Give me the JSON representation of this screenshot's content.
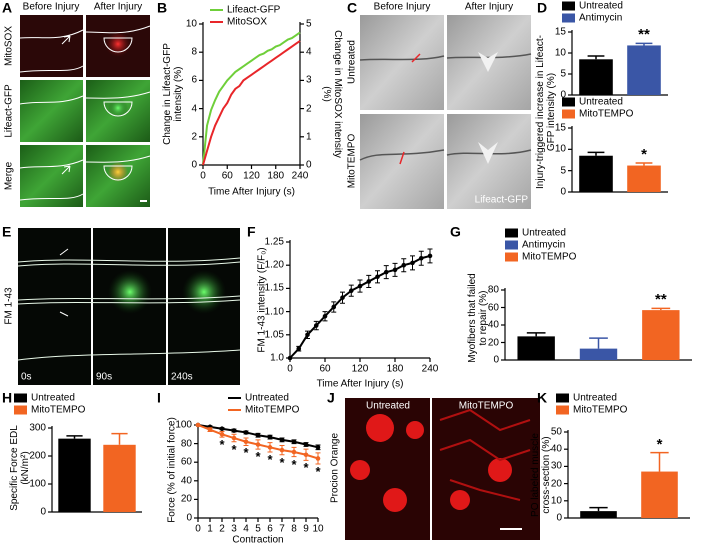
{
  "panel_labels": [
    "A",
    "B",
    "C",
    "D",
    "E",
    "F",
    "G",
    "H",
    "I",
    "J",
    "K"
  ],
  "images": {
    "A": {
      "columns": [
        "Before Injury",
        "After Injury"
      ],
      "rows": [
        "MitoSOX",
        "Lifeact-GFP",
        "Merge"
      ]
    },
    "C": {
      "columns": [
        "Before Injury",
        "After Injury"
      ],
      "rows": [
        "Untreated",
        "MitoTEMPO"
      ],
      "stain": "Lifeact-GFP"
    },
    "E": {
      "stain": "FM 1-43",
      "times": [
        "0s",
        "90s",
        "240s"
      ]
    },
    "J": {
      "columns": [
        "Untreated",
        "MitoTEMPO"
      ],
      "stain": "Procion Orange"
    }
  },
  "chart_data": [
    {
      "type": "line",
      "x": [
        0,
        10,
        20,
        30,
        40,
        50,
        60,
        70,
        80,
        90,
        100,
        110,
        120,
        130,
        140,
        150,
        160,
        170,
        180,
        190,
        200,
        210,
        220,
        230,
        240
      ],
      "xlim": [
        0,
        240
      ],
      "xticks": [
        0,
        60,
        120,
        180,
        240
      ],
      "xlabel": "Time After Injury (s)",
      "ylim": [
        0,
        10
      ],
      "yticks": [
        0,
        2,
        4,
        6,
        8,
        10
      ],
      "ylabel": "Change in Lifeact-GFP intensity (%)",
      "y2lim": [
        0,
        5
      ],
      "y2ticks": [
        0,
        1,
        2,
        3,
        4,
        5
      ],
      "y2label": "Change in MitoSOX intensity (%)",
      "series": [
        {
          "name": "Lifeact-GFP",
          "color": "#6fcf3a",
          "values": [
            0,
            2.8,
            3.9,
            4.6,
            5.2,
            5.6,
            6.0,
            6.3,
            6.6,
            6.8,
            7.0,
            7.2,
            7.4,
            7.6,
            7.8,
            7.9,
            8.1,
            8.2,
            8.4,
            8.5,
            8.7,
            8.9,
            9.0,
            9.2,
            9.4
          ]
        },
        {
          "name": "MitoSOX",
          "color": "#e8262a",
          "axis": "y2",
          "values": [
            0,
            0.5,
            1.0,
            1.4,
            1.7,
            2.0,
            2.2,
            2.5,
            2.7,
            2.8,
            3.0,
            3.1,
            3.2,
            3.3,
            3.4,
            3.5,
            3.6,
            3.7,
            3.8,
            3.9,
            4.0,
            4.1,
            4.2,
            4.3,
            4.4
          ]
        }
      ]
    },
    {
      "type": "bar",
      "categories": [
        "Untreated",
        "Antimycin"
      ],
      "colors": [
        "#000000",
        "#3a56a6"
      ],
      "values": [
        8.5,
        11.8
      ],
      "errors": [
        0.8,
        0.5
      ],
      "significance": [
        null,
        "**"
      ],
      "ylim": [
        0,
        15
      ],
      "yticks": [
        0,
        5,
        10,
        15
      ],
      "ylabel": "Injury-triggered increase in Lifeact-GFP intensity (%)"
    },
    {
      "type": "bar",
      "categories": [
        "Untreated",
        "MitoTEMPO"
      ],
      "colors": [
        "#000000",
        "#f26522"
      ],
      "values": [
        8.5,
        6.2
      ],
      "errors": [
        0.8,
        0.6
      ],
      "significance": [
        null,
        "*"
      ],
      "ylim": [
        0,
        15
      ],
      "yticks": [
        0,
        5,
        10,
        15
      ]
    },
    {
      "type": "line",
      "markers": true,
      "x": [
        0,
        15,
        30,
        45,
        60,
        75,
        90,
        105,
        120,
        135,
        150,
        165,
        180,
        195,
        210,
        225,
        240
      ],
      "xlim": [
        0,
        240
      ],
      "xticks": [
        0,
        60,
        120,
        180,
        240
      ],
      "xlabel": "Time After Injury (s)",
      "ylim": [
        1,
        1.25
      ],
      "yticks": [
        {
          "value": 1,
          "label": "1.0"
        },
        1.05,
        {
          "value": 1.1,
          "label": "1.10"
        },
        1.15,
        {
          "value": 1.2,
          "label": "1.20"
        },
        1.25
      ],
      "ylabel": "FM 1-43 intensity (F/F₀)",
      "series": [
        {
          "color": "#000000",
          "values": [
            1.0,
            1.02,
            1.05,
            1.07,
            1.09,
            1.11,
            1.13,
            1.145,
            1.155,
            1.165,
            1.175,
            1.185,
            1.19,
            1.2,
            1.205,
            1.215,
            1.22
          ],
          "errors": [
            0,
            0.005,
            0.008,
            0.009,
            0.01,
            0.011,
            0.012,
            0.012,
            0.013,
            0.013,
            0.013,
            0.014,
            0.014,
            0.014,
            0.015,
            0.015,
            0.015
          ]
        }
      ]
    },
    {
      "type": "bar",
      "categories": [
        "Untreated",
        "Antimycin",
        "MitoTEMPO"
      ],
      "colors": [
        "#000000",
        "#3a56a6",
        "#f26522"
      ],
      "values": [
        27,
        13,
        57
      ],
      "errors": [
        4,
        12,
        2
      ],
      "significance": [
        null,
        null,
        "**"
      ],
      "ylim": [
        0,
        80
      ],
      "yticks": [
        0,
        20,
        40,
        60,
        80
      ],
      "ylabel": "Myofibers that failed to repair (%)"
    },
    {
      "type": "bar",
      "categories": [
        "Untreated",
        "MitoTEMPO"
      ],
      "colors": [
        "#000000",
        "#f26522"
      ],
      "values": [
        262,
        240
      ],
      "errors": [
        10,
        40
      ],
      "ylim": [
        0,
        300
      ],
      "yticks": [
        0,
        100,
        200,
        300
      ],
      "ylabel": "Specific Force EDL (kN/m²)"
    },
    {
      "type": "line",
      "markers": true,
      "x": [
        0,
        1,
        2,
        3,
        4,
        5,
        6,
        7,
        8,
        9,
        10
      ],
      "xlim": [
        0,
        10
      ],
      "xticks": [
        0,
        1,
        2,
        3,
        4,
        5,
        6,
        7,
        8,
        9,
        10
      ],
      "xlabel": "Contraction",
      "ylim": [
        0,
        100
      ],
      "yticks": [
        0,
        20,
        40,
        60,
        80,
        100
      ],
      "ylabel": "Force (% of initial force)",
      "series": [
        {
          "name": "Untreated",
          "color": "#000000",
          "values": [
            100,
            98,
            96,
            94,
            92,
            89,
            87,
            84,
            82,
            79,
            76
          ],
          "errors": [
            0,
            1,
            1,
            1.5,
            1.5,
            2,
            2,
            2,
            2,
            2,
            2.5
          ]
        },
        {
          "name": "MitoTEMPO",
          "color": "#f26522",
          "values": [
            100,
            95,
            90,
            86,
            82,
            79,
            76,
            73,
            71,
            68,
            64
          ],
          "errors": [
            0,
            2,
            3,
            4,
            4,
            5,
            5,
            5,
            5,
            6,
            6
          ],
          "significance": [
            null,
            null,
            "*",
            "*",
            "*",
            "*",
            "*",
            "*",
            "*",
            "*",
            "*"
          ]
        }
      ]
    },
    {
      "type": "bar",
      "categories": [
        "Untreated",
        "MitoTEMPO"
      ],
      "colors": [
        "#000000",
        "#f26522"
      ],
      "values": [
        4,
        27
      ],
      "errors": [
        2,
        11
      ],
      "significance": [
        null,
        "*"
      ],
      "ylim": [
        0,
        50
      ],
      "yticks": [
        0,
        10,
        20,
        30,
        40,
        50
      ],
      "ylabel": "PO labeled muscle cross-section (%)"
    }
  ]
}
